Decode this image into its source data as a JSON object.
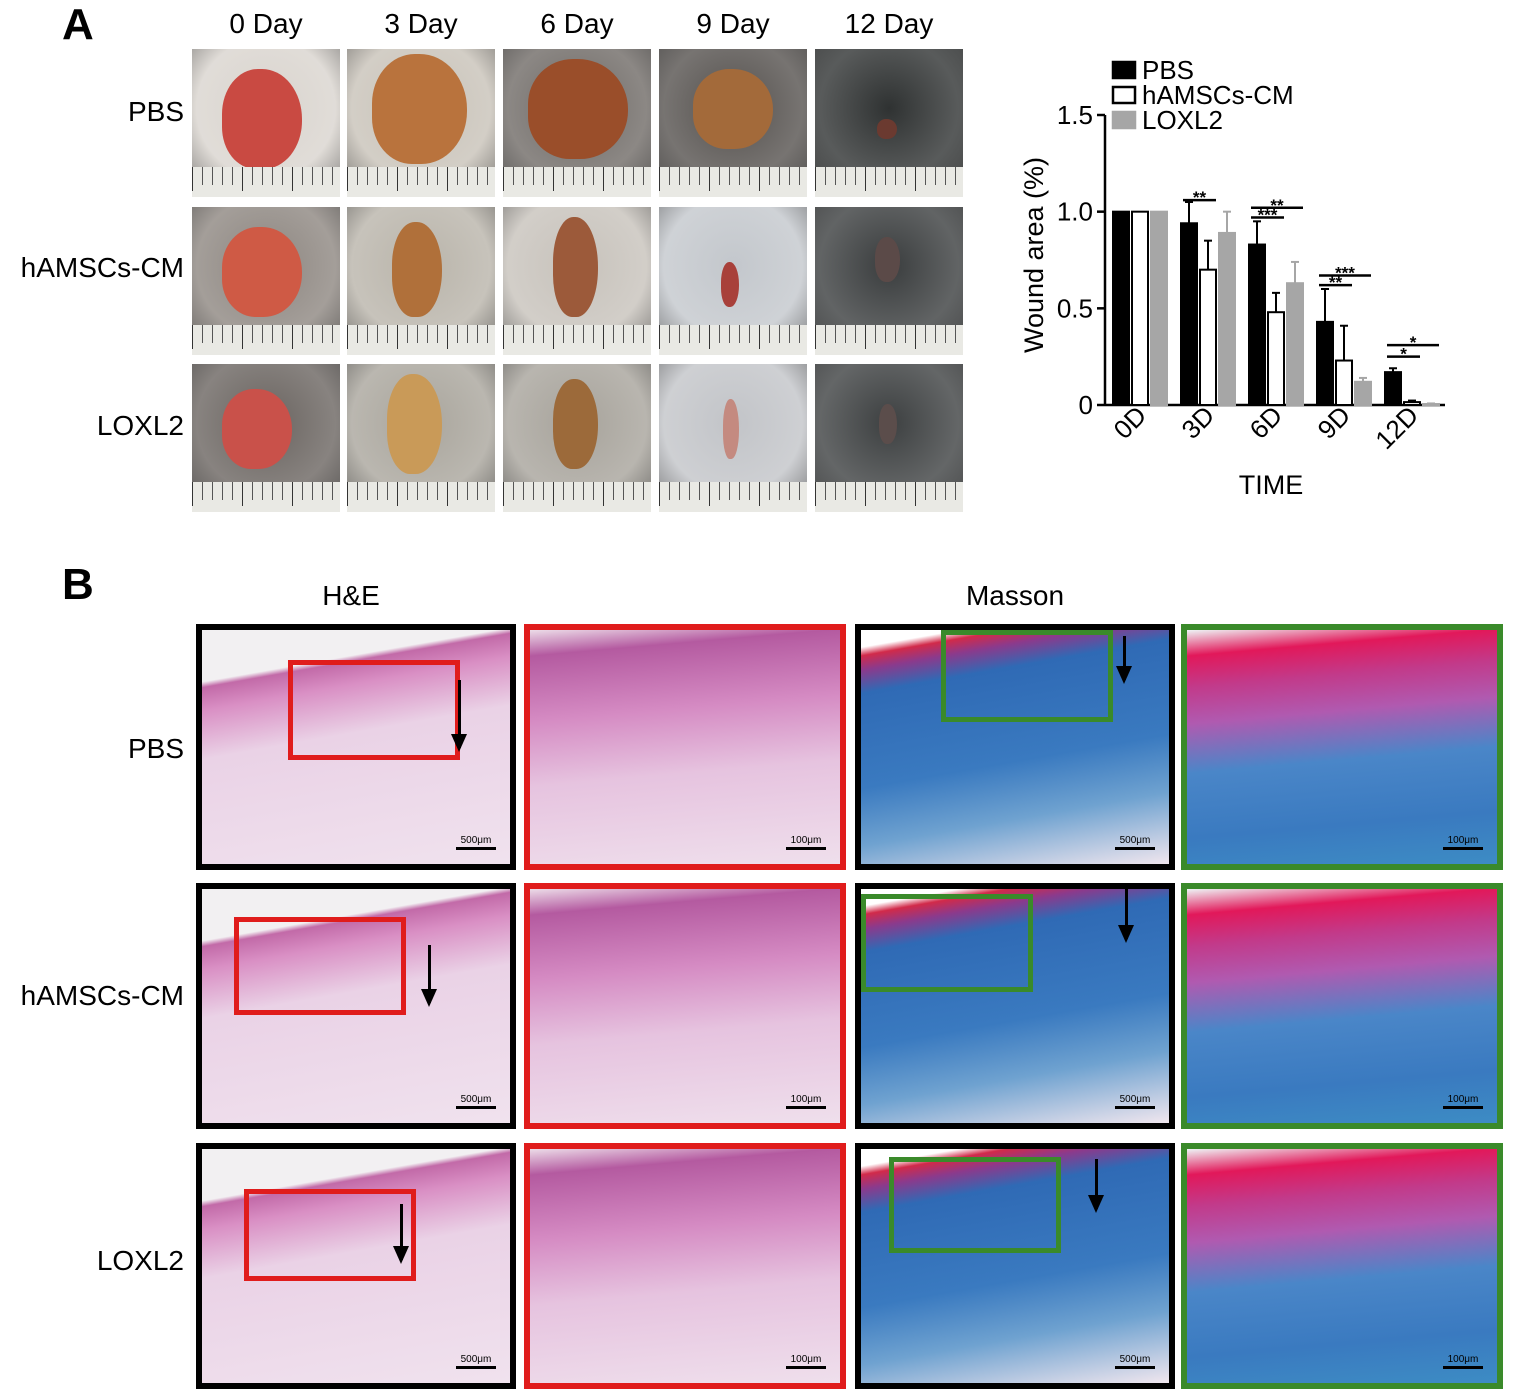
{
  "panel_a": {
    "letter": "A",
    "columns": [
      "0 Day",
      "3 Day",
      "6 Day",
      "9 Day",
      "12 Day"
    ],
    "rows": [
      "PBS",
      "hAMSCs-CM",
      "LOXL2"
    ]
  },
  "panel_b": {
    "letter": "B",
    "sections": [
      "H&E",
      "Masson"
    ],
    "rows": [
      "PBS",
      "hAMSCs-CM",
      "LOXL2"
    ],
    "scale_large": "500μm",
    "scale_small": "100μm"
  },
  "chart_data": {
    "type": "bar",
    "categories": [
      "0D",
      "3D",
      "6D",
      "9D",
      "12D"
    ],
    "series": [
      {
        "name": "PBS",
        "values": [
          1.0,
          0.94,
          0.83,
          0.43,
          0.17
        ],
        "errors": [
          0,
          0.11,
          0.12,
          0.17,
          0.02
        ],
        "color": "#000000"
      },
      {
        "name": "hAMSCs-CM",
        "values": [
          1.0,
          0.7,
          0.48,
          0.23,
          0.015
        ],
        "errors": [
          0,
          0.15,
          0.1,
          0.18,
          0.008
        ],
        "color": "#ffffff"
      },
      {
        "name": "LOXL2",
        "values": [
          1.0,
          0.89,
          0.63,
          0.12,
          0.005
        ],
        "errors": [
          0,
          0.11,
          0.11,
          0.02,
          0.003
        ],
        "color": "#a6a6a6"
      }
    ],
    "xlabel": "TIME",
    "ylabel": "Wound area (%)",
    "ylim": [
      0,
      1.5
    ],
    "yticks": [
      0,
      0.5,
      1.0,
      1.5
    ],
    "ytick_labels": [
      "0",
      "0.5",
      "1.0",
      "1.5"
    ],
    "legend_position": "top-right",
    "significance": [
      {
        "category": "3D",
        "label": "**"
      },
      {
        "category": "6D",
        "label": "***"
      },
      {
        "category": "6D",
        "label": "**"
      },
      {
        "category": "9D",
        "label": "**"
      },
      {
        "category": "9D",
        "label": "***"
      },
      {
        "category": "12D",
        "label": "*"
      },
      {
        "category": "12D",
        "label": "*"
      }
    ]
  }
}
